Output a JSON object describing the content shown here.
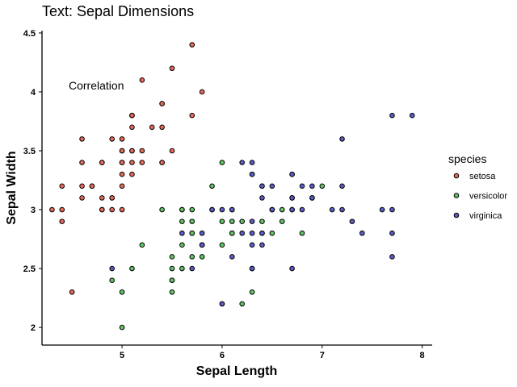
{
  "chart_data": {
    "type": "scatter",
    "title": "Text: Sepal Dimensions",
    "xlabel": "Sepal Length",
    "ylabel": "Sepal Width",
    "xlim": [
      4.2,
      8.1
    ],
    "ylim": [
      1.85,
      4.52
    ],
    "xticks": [
      5,
      6,
      7,
      8
    ],
    "yticks": [
      2,
      2.5,
      3,
      3.5,
      4,
      4.5
    ],
    "grid": false,
    "legend_position": "right",
    "legend_title": "species",
    "annotations": [
      {
        "text": "Correlation",
        "x": 4.4,
        "y": 4.05
      }
    ],
    "series": [
      {
        "name": "setosa",
        "color": "#e8685a",
        "points": [
          [
            5.1,
            3.5
          ],
          [
            4.9,
            3.0
          ],
          [
            4.7,
            3.2
          ],
          [
            4.6,
            3.1
          ],
          [
            5.0,
            3.6
          ],
          [
            5.4,
            3.9
          ],
          [
            4.6,
            3.4
          ],
          [
            5.0,
            3.4
          ],
          [
            4.4,
            2.9
          ],
          [
            4.9,
            3.1
          ],
          [
            5.4,
            3.7
          ],
          [
            4.8,
            3.4
          ],
          [
            4.8,
            3.0
          ],
          [
            4.3,
            3.0
          ],
          [
            5.8,
            4.0
          ],
          [
            5.7,
            4.4
          ],
          [
            5.4,
            3.9
          ],
          [
            5.1,
            3.5
          ],
          [
            5.7,
            3.8
          ],
          [
            5.1,
            3.8
          ],
          [
            5.4,
            3.4
          ],
          [
            5.1,
            3.7
          ],
          [
            4.6,
            3.6
          ],
          [
            5.1,
            3.3
          ],
          [
            4.8,
            3.4
          ],
          [
            5.0,
            3.0
          ],
          [
            5.0,
            3.4
          ],
          [
            5.2,
            3.5
          ],
          [
            5.2,
            3.4
          ],
          [
            4.7,
            3.2
          ],
          [
            4.8,
            3.1
          ],
          [
            5.4,
            3.4
          ],
          [
            5.2,
            4.1
          ],
          [
            5.5,
            4.2
          ],
          [
            4.9,
            3.1
          ],
          [
            5.0,
            3.2
          ],
          [
            5.5,
            3.5
          ],
          [
            4.9,
            3.6
          ],
          [
            4.4,
            3.0
          ],
          [
            5.1,
            3.4
          ],
          [
            5.0,
            3.5
          ],
          [
            4.5,
            2.3
          ],
          [
            4.4,
            3.2
          ],
          [
            5.0,
            3.5
          ],
          [
            5.1,
            3.8
          ],
          [
            4.8,
            3.0
          ],
          [
            5.1,
            3.8
          ],
          [
            4.6,
            3.2
          ],
          [
            5.3,
            3.7
          ],
          [
            5.0,
            3.3
          ]
        ]
      },
      {
        "name": "versicolor",
        "color": "#5fc461",
        "points": [
          [
            7.0,
            3.2
          ],
          [
            6.4,
            3.2
          ],
          [
            6.9,
            3.1
          ],
          [
            5.5,
            2.3
          ],
          [
            6.5,
            2.8
          ],
          [
            5.7,
            2.8
          ],
          [
            6.3,
            3.3
          ],
          [
            4.9,
            2.4
          ],
          [
            6.6,
            2.9
          ],
          [
            5.2,
            2.7
          ],
          [
            5.0,
            2.0
          ],
          [
            5.9,
            3.0
          ],
          [
            6.0,
            2.2
          ],
          [
            6.1,
            2.9
          ],
          [
            5.6,
            2.9
          ],
          [
            6.7,
            3.1
          ],
          [
            5.6,
            3.0
          ],
          [
            5.8,
            2.7
          ],
          [
            6.2,
            2.2
          ],
          [
            5.6,
            2.5
          ],
          [
            5.9,
            3.2
          ],
          [
            6.1,
            2.8
          ],
          [
            6.3,
            2.5
          ],
          [
            6.1,
            2.8
          ],
          [
            6.4,
            2.9
          ],
          [
            6.6,
            3.0
          ],
          [
            6.8,
            2.8
          ],
          [
            6.7,
            3.0
          ],
          [
            6.0,
            2.9
          ],
          [
            5.7,
            2.6
          ],
          [
            5.5,
            2.4
          ],
          [
            5.5,
            2.4
          ],
          [
            5.8,
            2.7
          ],
          [
            6.0,
            2.7
          ],
          [
            5.4,
            3.0
          ],
          [
            6.0,
            3.4
          ],
          [
            6.7,
            3.1
          ],
          [
            6.3,
            2.3
          ],
          [
            5.6,
            3.0
          ],
          [
            5.5,
            2.5
          ],
          [
            5.5,
            2.6
          ],
          [
            6.1,
            3.0
          ],
          [
            5.8,
            2.6
          ],
          [
            5.0,
            2.3
          ],
          [
            5.6,
            2.7
          ],
          [
            5.7,
            3.0
          ],
          [
            5.7,
            2.9
          ],
          [
            6.2,
            2.9
          ],
          [
            5.1,
            2.5
          ],
          [
            5.7,
            2.8
          ]
        ]
      },
      {
        "name": "virginica",
        "color": "#5c5cc6",
        "points": [
          [
            6.3,
            3.3
          ],
          [
            5.8,
            2.7
          ],
          [
            7.1,
            3.0
          ],
          [
            6.3,
            2.9
          ],
          [
            6.5,
            3.0
          ],
          [
            7.6,
            3.0
          ],
          [
            4.9,
            2.5
          ],
          [
            7.3,
            2.9
          ],
          [
            6.7,
            2.5
          ],
          [
            7.2,
            3.6
          ],
          [
            6.5,
            3.2
          ],
          [
            6.4,
            2.7
          ],
          [
            6.8,
            3.0
          ],
          [
            5.7,
            2.5
          ],
          [
            5.8,
            2.8
          ],
          [
            6.4,
            3.2
          ],
          [
            6.5,
            3.0
          ],
          [
            7.7,
            3.8
          ],
          [
            7.7,
            2.6
          ],
          [
            6.0,
            2.2
          ],
          [
            6.9,
            3.2
          ],
          [
            5.6,
            2.8
          ],
          [
            7.7,
            2.8
          ],
          [
            6.3,
            2.7
          ],
          [
            6.7,
            3.3
          ],
          [
            7.2,
            3.2
          ],
          [
            6.2,
            2.8
          ],
          [
            6.1,
            3.0
          ],
          [
            6.4,
            2.8
          ],
          [
            7.2,
            3.0
          ],
          [
            7.4,
            2.8
          ],
          [
            7.9,
            3.8
          ],
          [
            6.4,
            2.8
          ],
          [
            6.3,
            2.8
          ],
          [
            6.1,
            2.6
          ],
          [
            7.7,
            3.0
          ],
          [
            6.3,
            3.4
          ],
          [
            6.4,
            3.1
          ],
          [
            6.0,
            3.0
          ],
          [
            6.9,
            3.1
          ],
          [
            6.7,
            3.1
          ],
          [
            6.9,
            3.1
          ],
          [
            5.8,
            2.7
          ],
          [
            6.8,
            3.2
          ],
          [
            6.7,
            3.3
          ],
          [
            6.7,
            3.0
          ],
          [
            6.3,
            2.5
          ],
          [
            6.5,
            3.0
          ],
          [
            6.2,
            3.4
          ],
          [
            5.9,
            3.0
          ]
        ]
      }
    ]
  }
}
